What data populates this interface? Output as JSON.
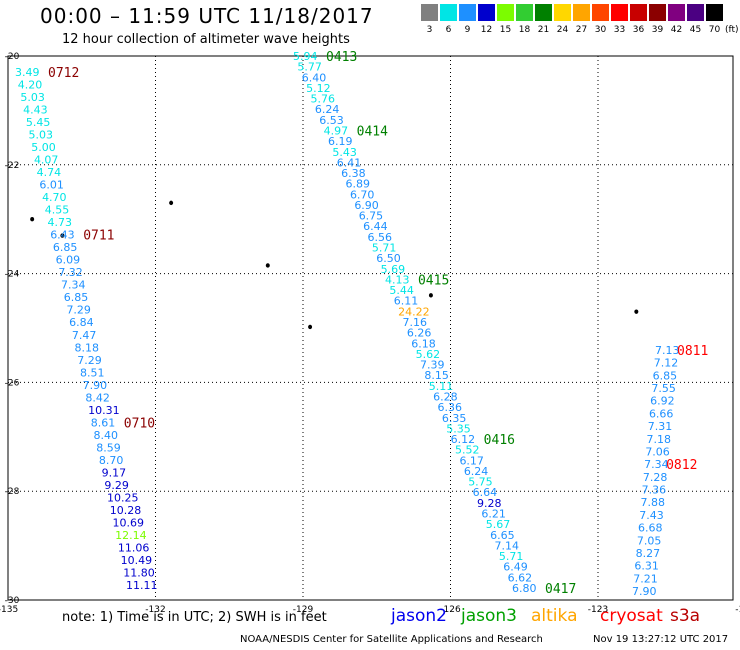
{
  "header": {
    "title": "00:00 – 11:59 UTC 11/18/2017",
    "subtitle": "12 hour collection of altimeter wave heights"
  },
  "color_scale": {
    "unit": "(ft)",
    "bins": [
      {
        "label": "3",
        "color": "#808080"
      },
      {
        "label": "6",
        "color": "#00e5e5"
      },
      {
        "label": "9",
        "color": "#1e90ff"
      },
      {
        "label": "12",
        "color": "#0000cd"
      },
      {
        "label": "15",
        "color": "#7cfc00"
      },
      {
        "label": "18",
        "color": "#32cd32"
      },
      {
        "label": "21",
        "color": "#008000"
      },
      {
        "label": "24",
        "color": "#ffd700"
      },
      {
        "label": "27",
        "color": "#ffa500"
      },
      {
        "label": "30",
        "color": "#ff4500"
      },
      {
        "label": "33",
        "color": "#ff0000"
      },
      {
        "label": "36",
        "color": "#c80000"
      },
      {
        "label": "39",
        "color": "#8b0000"
      },
      {
        "label": "42",
        "color": "#800080"
      },
      {
        "label": "45",
        "color": "#4b0082"
      },
      {
        "label": "70",
        "color": "#000000"
      }
    ]
  },
  "map": {
    "lon_range": [
      -135,
      -123
    ],
    "lat_range": [
      -30,
      -20
    ],
    "lon_ticks": [
      "-135",
      "-132",
      "-129",
      "-126",
      "-123",
      "-120"
    ],
    "lat_ticks": [
      "-20",
      "-22",
      "-24",
      "-26",
      "-28",
      "-30"
    ],
    "grid": "dotted",
    "islands": [
      {
        "lon": -132.3,
        "lat": -22.7
      },
      {
        "lon": -134.6,
        "lat": -23.0
      },
      {
        "lon": -134.1,
        "lat": -23.3
      },
      {
        "lon": -130.7,
        "lat": -23.85
      },
      {
        "lon": -128.0,
        "lat": -24.4
      },
      {
        "lon": -130.0,
        "lat": -24.98
      },
      {
        "lon": -124.6,
        "lat": -24.7
      }
    ],
    "tracks": [
      {
        "satellite": "jason3",
        "values": [
          "3.49",
          "4.20",
          "5.03",
          "4.43",
          "5.45",
          "5.03",
          "5.00",
          "4.07",
          "4.74",
          "6.01",
          "4.70",
          "4.55",
          "4.73",
          "6.43",
          "6.85",
          "6.09",
          "7.32",
          "7.34",
          "6.85",
          "7.29",
          "6.84",
          "7.47",
          "8.18",
          "7.29",
          "8.51",
          "7.90",
          "8.42",
          "10.31",
          "8.61",
          "8.40",
          "8.59",
          "8.70",
          "9.17",
          "9.29",
          "10.25",
          "10.28",
          "10.69",
          "12.14",
          "11.06",
          "10.49",
          "11.80",
          "11.11"
        ],
        "times": [
          {
            "label": "0712",
            "index": 0,
            "color": "#8b0000"
          },
          {
            "label": "0711",
            "index": 13,
            "color": "#8b0000"
          },
          {
            "label": "0710",
            "index": 28,
            "color": "#8b0000"
          }
        ]
      },
      {
        "satellite": "jason3",
        "values": [
          "5.94",
          "5.77",
          "6.40",
          "5.12",
          "5.76",
          "6.24",
          "6.53",
          "4.97",
          "6.19",
          "5.43",
          "6.41",
          "6.38",
          "6.89",
          "6.70",
          "6.90",
          "6.75",
          "6.44",
          "6.56",
          "5.71",
          "6.50",
          "5.69",
          "4.13",
          "5.44",
          "6.11",
          "24.22",
          "7.16",
          "6.26",
          "6.18",
          "5.62",
          "7.39",
          "8.15",
          "5.11",
          "6.28",
          "6.36",
          "6.35",
          "5.35",
          "6.12",
          "5.52",
          "6.17",
          "6.24",
          "5.75",
          "6.64",
          "9.28",
          "6.21",
          "5.67",
          "6.65",
          "7.14",
          "5.71",
          "6.49",
          "6.62",
          "6.80"
        ],
        "times": [
          {
            "label": "0413",
            "index": 0,
            "color": "#008000"
          },
          {
            "label": "0414",
            "index": 7,
            "color": "#008000"
          },
          {
            "label": "0415",
            "index": 21,
            "color": "#008000"
          },
          {
            "label": "0416",
            "index": 36,
            "color": "#008000"
          },
          {
            "label": "0417",
            "index": 50,
            "color": "#008000"
          }
        ]
      },
      {
        "satellite": "cryosat",
        "values": [
          "7.13",
          "7.12",
          "6.85",
          "7.55",
          "6.92",
          "6.66",
          "7.31",
          "7.18",
          "7.06",
          "7.34",
          "7.28",
          "7.36",
          "7.88",
          "7.43",
          "6.68",
          "7.05",
          "8.27",
          "6.31",
          "7.21",
          "7.90"
        ],
        "times": [
          {
            "label": "0811",
            "index": 0,
            "color": "#ff0000"
          },
          {
            "label": "0812",
            "index": 9,
            "color": "#ff0000"
          }
        ]
      }
    ]
  },
  "footer": {
    "note": "note: 1) Time is in UTC; 2) SWH is in feet",
    "legend": [
      {
        "name": "jason2",
        "color": "#0000ee"
      },
      {
        "name": "jason3",
        "color": "#00a000"
      },
      {
        "name": "altika",
        "color": "#ffa500"
      },
      {
        "name": "cryosat",
        "color": "#ff0000"
      },
      {
        "name": "s3a",
        "color": "#b80000"
      }
    ],
    "credit": "NOAA/NESDIS Center for Satellite Applications and Research",
    "timestamp": "Nov 19 13:27:12 UTC 2017"
  }
}
